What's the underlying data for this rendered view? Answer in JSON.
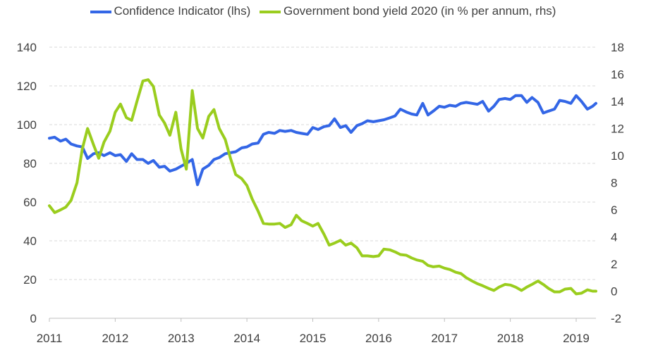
{
  "legend": {
    "series1": "Confidence Indicator (lhs)",
    "series2": "Government bond yield 2020 (in % per annum, rhs)"
  },
  "chart_data": {
    "type": "line",
    "legend_position": "top",
    "grid": "horizontal-dashed",
    "x_range": [
      2011,
      2019.3
    ],
    "x_ticks": [
      "2011",
      "2012",
      "2013",
      "2014",
      "2015",
      "2016",
      "2017",
      "2018",
      "2019"
    ],
    "y_left": {
      "range": [
        0,
        140
      ],
      "ticks": [
        "0",
        "20",
        "40",
        "60",
        "80",
        "100",
        "120",
        "140"
      ]
    },
    "y_right": {
      "range": [
        -2,
        18
      ],
      "ticks": [
        "-2",
        "0",
        "2",
        "4",
        "6",
        "8",
        "10",
        "12",
        "14",
        "16",
        "18"
      ]
    },
    "series": [
      {
        "name": "Confidence Indicator (lhs)",
        "axis": "left",
        "color": "#3366e6",
        "points": [
          [
            2011.0,
            93
          ],
          [
            2011.08,
            93.5
          ],
          [
            2011.17,
            91.5
          ],
          [
            2011.25,
            92.5
          ],
          [
            2011.33,
            90
          ],
          [
            2011.42,
            89
          ],
          [
            2011.5,
            88.5
          ],
          [
            2011.58,
            82.5
          ],
          [
            2011.67,
            85
          ],
          [
            2011.75,
            85.5
          ],
          [
            2011.83,
            84
          ],
          [
            2011.92,
            85.5
          ],
          [
            2012.0,
            84
          ],
          [
            2012.08,
            84.5
          ],
          [
            2012.17,
            81
          ],
          [
            2012.25,
            85
          ],
          [
            2012.33,
            82
          ],
          [
            2012.42,
            82
          ],
          [
            2012.5,
            80
          ],
          [
            2012.58,
            81.5
          ],
          [
            2012.67,
            78
          ],
          [
            2012.75,
            78.5
          ],
          [
            2012.83,
            76
          ],
          [
            2012.92,
            77
          ],
          [
            2013.0,
            78.5
          ],
          [
            2013.08,
            80
          ],
          [
            2013.17,
            82
          ],
          [
            2013.25,
            69
          ],
          [
            2013.33,
            77
          ],
          [
            2013.42,
            79
          ],
          [
            2013.5,
            82
          ],
          [
            2013.58,
            83
          ],
          [
            2013.67,
            85
          ],
          [
            2013.75,
            85.5
          ],
          [
            2013.83,
            86
          ],
          [
            2013.92,
            88
          ],
          [
            2014.0,
            88.5
          ],
          [
            2014.08,
            90
          ],
          [
            2014.17,
            90.5
          ],
          [
            2014.25,
            95
          ],
          [
            2014.33,
            96
          ],
          [
            2014.42,
            95.5
          ],
          [
            2014.5,
            97
          ],
          [
            2014.58,
            96.5
          ],
          [
            2014.67,
            97
          ],
          [
            2014.75,
            96
          ],
          [
            2014.83,
            95.5
          ],
          [
            2014.92,
            95
          ],
          [
            2015.0,
            98.5
          ],
          [
            2015.08,
            97.5
          ],
          [
            2015.17,
            99
          ],
          [
            2015.25,
            99.5
          ],
          [
            2015.33,
            103
          ],
          [
            2015.42,
            98.5
          ],
          [
            2015.5,
            99.5
          ],
          [
            2015.58,
            96
          ],
          [
            2015.67,
            99.5
          ],
          [
            2015.75,
            100.5
          ],
          [
            2015.83,
            102
          ],
          [
            2015.92,
            101.5
          ],
          [
            2016.0,
            102
          ],
          [
            2016.08,
            102.5
          ],
          [
            2016.17,
            103.5
          ],
          [
            2016.25,
            104.5
          ],
          [
            2016.33,
            108
          ],
          [
            2016.42,
            106.5
          ],
          [
            2016.5,
            105.5
          ],
          [
            2016.58,
            105
          ],
          [
            2016.67,
            111
          ],
          [
            2016.75,
            105
          ],
          [
            2016.83,
            107
          ],
          [
            2016.92,
            109.5
          ],
          [
            2017.0,
            109
          ],
          [
            2017.08,
            110
          ],
          [
            2017.17,
            109.5
          ],
          [
            2017.25,
            111
          ],
          [
            2017.33,
            111.5
          ],
          [
            2017.42,
            111
          ],
          [
            2017.5,
            110.5
          ],
          [
            2017.58,
            112
          ],
          [
            2017.67,
            107
          ],
          [
            2017.75,
            109.5
          ],
          [
            2017.83,
            113
          ],
          [
            2017.92,
            113.5
          ],
          [
            2018.0,
            113
          ],
          [
            2018.08,
            115
          ],
          [
            2018.17,
            115
          ],
          [
            2018.25,
            111.5
          ],
          [
            2018.33,
            114
          ],
          [
            2018.42,
            111.5
          ],
          [
            2018.5,
            106
          ],
          [
            2018.58,
            107
          ],
          [
            2018.67,
            108
          ],
          [
            2018.75,
            112.5
          ],
          [
            2018.83,
            112
          ],
          [
            2018.92,
            111
          ],
          [
            2019.0,
            115
          ],
          [
            2019.08,
            112
          ],
          [
            2019.17,
            108
          ],
          [
            2019.25,
            109.5
          ],
          [
            2019.3,
            111
          ]
        ]
      },
      {
        "name": "Government bond yield 2020 (in % per annum, rhs)",
        "axis": "right",
        "color": "#9acd1e",
        "points": [
          [
            2011.0,
            6.3
          ],
          [
            2011.08,
            5.8
          ],
          [
            2011.17,
            6.0
          ],
          [
            2011.25,
            6.2
          ],
          [
            2011.33,
            6.7
          ],
          [
            2011.42,
            8.0
          ],
          [
            2011.5,
            10.5
          ],
          [
            2011.58,
            12.0
          ],
          [
            2011.67,
            10.8
          ],
          [
            2011.75,
            9.8
          ],
          [
            2011.83,
            11.0
          ],
          [
            2011.92,
            11.8
          ],
          [
            2012.0,
            13.2
          ],
          [
            2012.08,
            13.8
          ],
          [
            2012.17,
            12.8
          ],
          [
            2012.25,
            12.6
          ],
          [
            2012.33,
            14.0
          ],
          [
            2012.42,
            15.5
          ],
          [
            2012.5,
            15.6
          ],
          [
            2012.58,
            15.1
          ],
          [
            2012.67,
            13.0
          ],
          [
            2012.75,
            12.4
          ],
          [
            2012.83,
            11.5
          ],
          [
            2012.92,
            13.2
          ],
          [
            2013.0,
            10.5
          ],
          [
            2013.08,
            9.0
          ],
          [
            2013.17,
            14.8
          ],
          [
            2013.25,
            12.0
          ],
          [
            2013.33,
            11.3
          ],
          [
            2013.42,
            12.9
          ],
          [
            2013.5,
            13.4
          ],
          [
            2013.58,
            12.0
          ],
          [
            2013.67,
            11.2
          ],
          [
            2013.75,
            9.8
          ],
          [
            2013.83,
            8.6
          ],
          [
            2013.92,
            8.3
          ],
          [
            2014.0,
            7.8
          ],
          [
            2014.08,
            6.8
          ],
          [
            2014.17,
            5.9
          ],
          [
            2014.25,
            5.0
          ],
          [
            2014.33,
            4.95
          ],
          [
            2014.42,
            4.95
          ],
          [
            2014.5,
            5.0
          ],
          [
            2014.58,
            4.7
          ],
          [
            2014.67,
            4.9
          ],
          [
            2014.75,
            5.6
          ],
          [
            2014.83,
            5.2
          ],
          [
            2014.92,
            5.0
          ],
          [
            2015.0,
            4.8
          ],
          [
            2015.08,
            5.0
          ],
          [
            2015.17,
            4.2
          ],
          [
            2015.25,
            3.4
          ],
          [
            2015.33,
            3.55
          ],
          [
            2015.42,
            3.75
          ],
          [
            2015.5,
            3.4
          ],
          [
            2015.58,
            3.55
          ],
          [
            2015.67,
            3.2
          ],
          [
            2015.75,
            2.6
          ],
          [
            2015.83,
            2.6
          ],
          [
            2015.92,
            2.55
          ],
          [
            2016.0,
            2.6
          ],
          [
            2016.08,
            3.1
          ],
          [
            2016.17,
            3.05
          ],
          [
            2016.25,
            2.9
          ],
          [
            2016.33,
            2.7
          ],
          [
            2016.42,
            2.65
          ],
          [
            2016.5,
            2.45
          ],
          [
            2016.58,
            2.3
          ],
          [
            2016.67,
            2.2
          ],
          [
            2016.75,
            1.9
          ],
          [
            2016.83,
            1.8
          ],
          [
            2016.92,
            1.85
          ],
          [
            2017.0,
            1.7
          ],
          [
            2017.08,
            1.6
          ],
          [
            2017.17,
            1.4
          ],
          [
            2017.25,
            1.3
          ],
          [
            2017.33,
            1.0
          ],
          [
            2017.42,
            0.75
          ],
          [
            2017.5,
            0.55
          ],
          [
            2017.58,
            0.4
          ],
          [
            2017.67,
            0.2
          ],
          [
            2017.75,
            0.05
          ],
          [
            2017.83,
            0.3
          ],
          [
            2017.92,
            0.5
          ],
          [
            2018.0,
            0.45
          ],
          [
            2018.08,
            0.3
          ],
          [
            2018.17,
            0.05
          ],
          [
            2018.25,
            0.3
          ],
          [
            2018.33,
            0.5
          ],
          [
            2018.42,
            0.75
          ],
          [
            2018.5,
            0.5
          ],
          [
            2018.58,
            0.2
          ],
          [
            2018.67,
            -0.05
          ],
          [
            2018.75,
            -0.05
          ],
          [
            2018.83,
            0.15
          ],
          [
            2018.92,
            0.2
          ],
          [
            2019.0,
            -0.2
          ],
          [
            2019.08,
            -0.15
          ],
          [
            2019.17,
            0.1
          ],
          [
            2019.25,
            0.0
          ],
          [
            2019.3,
            0.0
          ]
        ]
      }
    ]
  }
}
